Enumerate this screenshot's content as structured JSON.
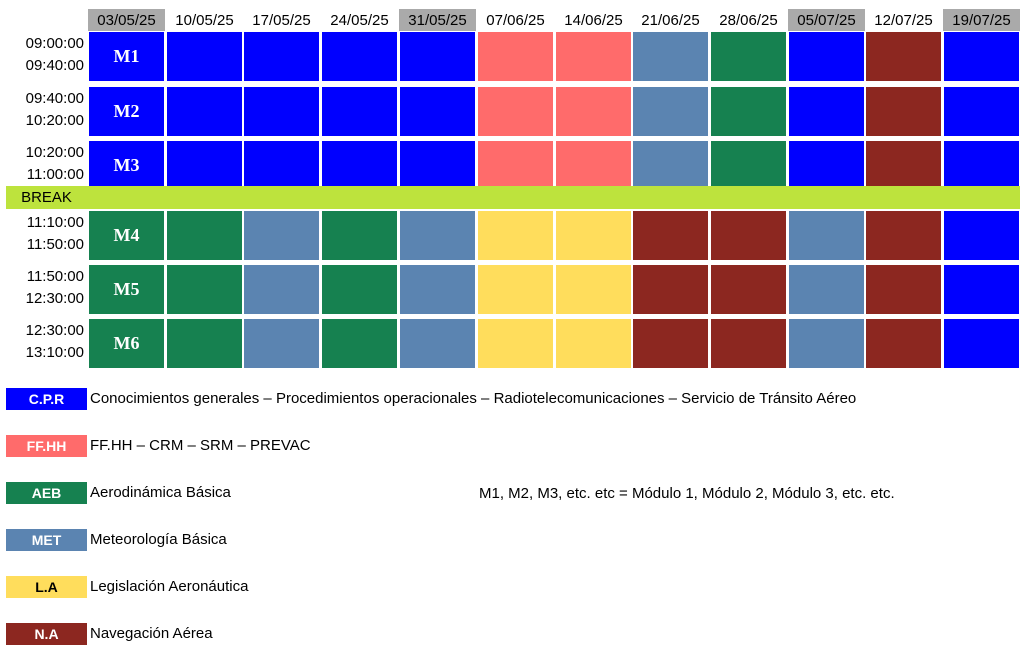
{
  "colors": {
    "CPR": "#0000ff",
    "FFHH": "#ff6b6b",
    "AEB": "#168150",
    "MET": "#5b84b1",
    "LA": "#ffdd5c",
    "NA": "#8c2720",
    "break": "#bde33d",
    "header_gray": "#aaaaaa"
  },
  "schedule": {
    "dates": [
      "03/05/25",
      "10/05/25",
      "17/05/25",
      "24/05/25",
      "31/05/25",
      "07/06/25",
      "14/06/25",
      "21/06/25",
      "28/06/25",
      "05/07/25",
      "12/07/25",
      "19/07/25"
    ],
    "break_label": "BREAK",
    "rows": [
      {
        "module": "M1",
        "start": "09:00:00",
        "end": "09:40:00",
        "cells": [
          "CPR",
          "CPR",
          "CPR",
          "CPR",
          "CPR",
          "FFHH",
          "FFHH",
          "MET",
          "AEB",
          "CPR",
          "NA",
          "CPR"
        ]
      },
      {
        "module": "M2",
        "start": "09:40:00",
        "end": "10:20:00",
        "cells": [
          "CPR",
          "CPR",
          "CPR",
          "CPR",
          "CPR",
          "FFHH",
          "FFHH",
          "MET",
          "AEB",
          "CPR",
          "NA",
          "CPR"
        ]
      },
      {
        "module": "M3",
        "start": "10:20:00",
        "end": "11:00:00",
        "cells": [
          "CPR",
          "CPR",
          "CPR",
          "CPR",
          "CPR",
          "FFHH",
          "FFHH",
          "MET",
          "AEB",
          "CPR",
          "NA",
          "CPR"
        ]
      },
      {
        "module": "M4",
        "start": "11:10:00",
        "end": "11:50:00",
        "cells": [
          "AEB",
          "AEB",
          "MET",
          "AEB",
          "MET",
          "LA",
          "LA",
          "NA",
          "NA",
          "MET",
          "NA",
          "CPR"
        ]
      },
      {
        "module": "M5",
        "start": "11:50:00",
        "end": "12:30:00",
        "cells": [
          "AEB",
          "AEB",
          "MET",
          "AEB",
          "MET",
          "LA",
          "LA",
          "NA",
          "NA",
          "MET",
          "NA",
          "CPR"
        ]
      },
      {
        "module": "M6",
        "start": "12:30:00",
        "end": "13:10:00",
        "cells": [
          "AEB",
          "AEB",
          "MET",
          "AEB",
          "MET",
          "LA",
          "LA",
          "NA",
          "NA",
          "MET",
          "NA",
          "CPR"
        ]
      }
    ]
  },
  "legend": [
    {
      "key": "CPR",
      "code": "C.P.R",
      "text": "Conocimientos generales – Procedimientos operacionales – Radiotelecomunicaciones – Servicio de Tránsito Aéreo"
    },
    {
      "key": "FFHH",
      "code": "FF.HH",
      "text": "FF.HH – CRM – SRM – PREVAC"
    },
    {
      "key": "AEB",
      "code": "AEB",
      "text": "Aerodinámica Básica"
    },
    {
      "key": "MET",
      "code": "MET",
      "text": "Meteorología Básica"
    },
    {
      "key": "LA",
      "code": "L.A",
      "text": "Legislación Aeronáutica"
    },
    {
      "key": "NA",
      "code": "N.A",
      "text": "Navegación Aérea"
    }
  ],
  "note": "M1, M2, M3, etc. etc = Módulo 1, Módulo 2, Módulo 3, etc. etc."
}
